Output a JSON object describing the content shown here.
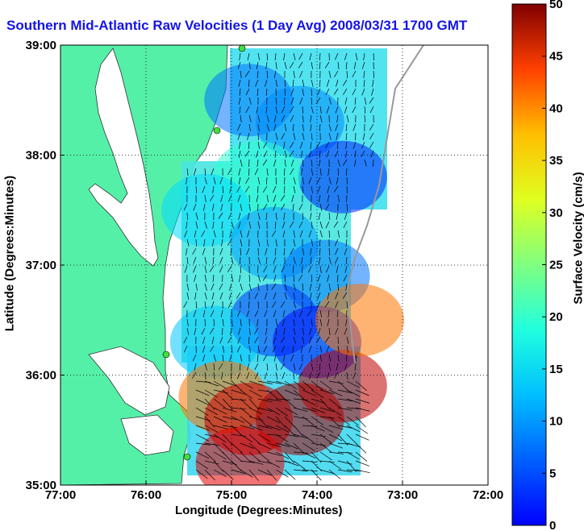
{
  "chart_data": {
    "type": "heatmap",
    "title": "Southern Mid-Atlantic Raw Velocities (1 Day Avg) 2008/03/31 1700 GMT",
    "xlabel": "Longitude (Degrees:Minutes)",
    "ylabel": "Latitude (Degrees:Minutes)",
    "colorbar_label": "Surface Velocity (cm/s)",
    "xlim": [
      -77,
      -72
    ],
    "ylim": [
      35,
      39
    ],
    "x_ticks": [
      {
        "value": -77,
        "label": "77:00"
      },
      {
        "value": -76,
        "label": "76:00"
      },
      {
        "value": -75,
        "label": "75:00"
      },
      {
        "value": -74,
        "label": "74:00"
      },
      {
        "value": -73,
        "label": "73:00"
      },
      {
        "value": -72,
        "label": "72:00"
      }
    ],
    "y_ticks": [
      {
        "value": 35,
        "label": "35:00"
      },
      {
        "value": 36,
        "label": "36:00"
      },
      {
        "value": 37,
        "label": "37:00"
      },
      {
        "value": 38,
        "label": "38:00"
      },
      {
        "value": 39,
        "label": "39:00"
      }
    ],
    "colorbar": {
      "range": [
        0,
        50
      ],
      "ticks": [
        {
          "value": 0,
          "label": "0"
        },
        {
          "value": 5,
          "label": "5"
        },
        {
          "value": 10,
          "label": "10"
        },
        {
          "value": 15,
          "label": "15"
        },
        {
          "value": 20,
          "label": "20"
        },
        {
          "value": 25,
          "label": "25"
        },
        {
          "value": 30,
          "label": "30"
        },
        {
          "value": 35,
          "label": "35"
        },
        {
          "value": 40,
          "label": "40"
        },
        {
          "value": 45,
          "label": "45"
        },
        {
          "value": 50,
          "label": "50"
        }
      ],
      "colormap": "jet"
    },
    "grid": true,
    "regions": [
      {
        "lon": -74.8,
        "lat": 38.5,
        "speed": 12
      },
      {
        "lon": -74.2,
        "lat": 38.3,
        "speed": 13
      },
      {
        "lon": -73.7,
        "lat": 37.8,
        "speed": 8
      },
      {
        "lon": -74.7,
        "lat": 37.8,
        "speed": 21
      },
      {
        "lon": -75.3,
        "lat": 37.5,
        "speed": 17
      },
      {
        "lon": -74.5,
        "lat": 37.2,
        "speed": 14
      },
      {
        "lon": -73.9,
        "lat": 36.9,
        "speed": 12
      },
      {
        "lon": -74.5,
        "lat": 36.5,
        "speed": 9
      },
      {
        "lon": -74.0,
        "lat": 36.3,
        "speed": 7
      },
      {
        "lon": -75.2,
        "lat": 36.3,
        "speed": 16
      },
      {
        "lon": -75.1,
        "lat": 35.8,
        "speed": 38
      },
      {
        "lon": -74.8,
        "lat": 35.6,
        "speed": 46
      },
      {
        "lon": -74.2,
        "lat": 35.6,
        "speed": 48
      },
      {
        "lon": -73.7,
        "lat": 35.9,
        "speed": 47
      },
      {
        "lon": -73.5,
        "lat": 36.5,
        "speed": 38
      },
      {
        "lon": -74.9,
        "lat": 35.2,
        "speed": 45
      }
    ]
  }
}
